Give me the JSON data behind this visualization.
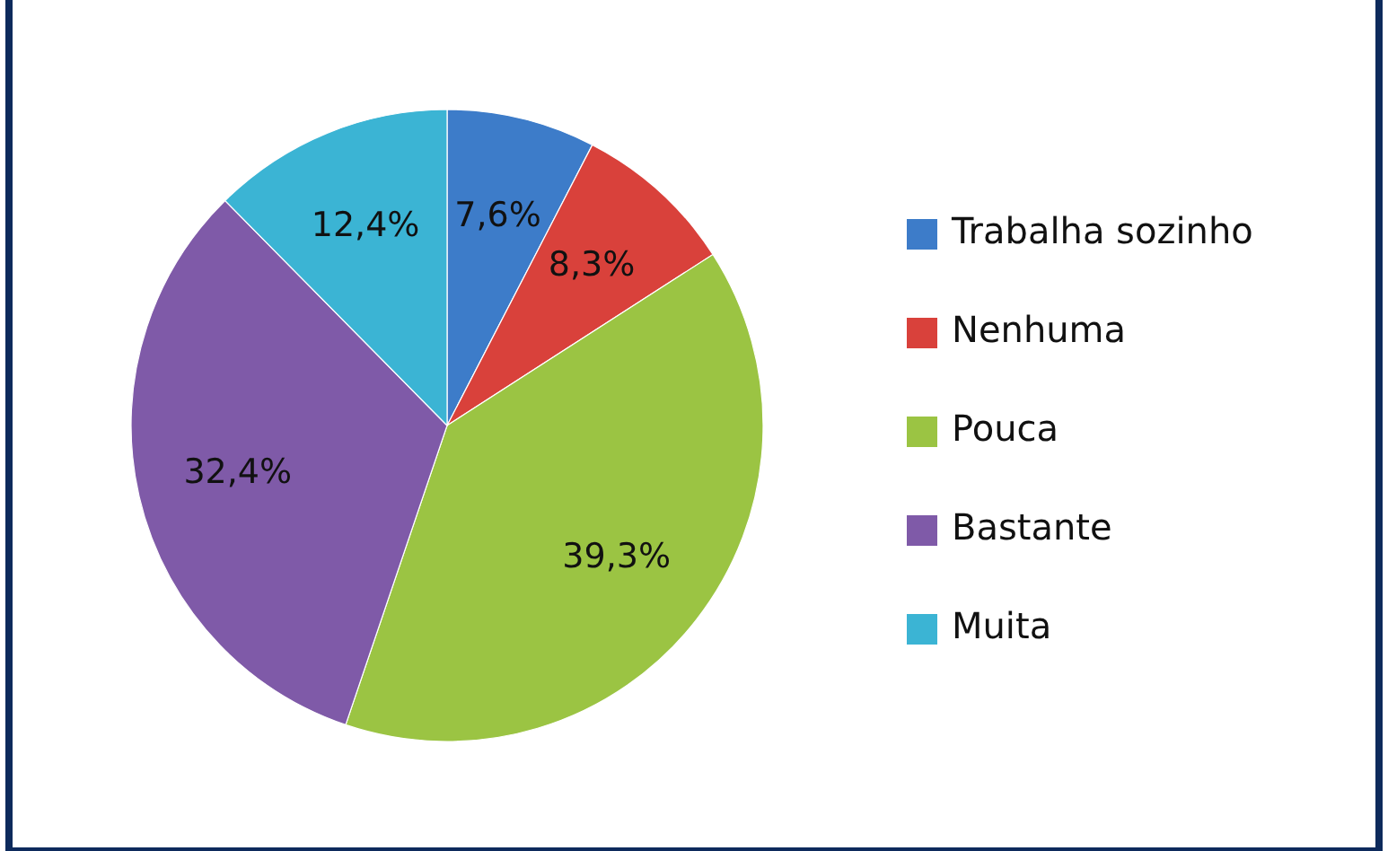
{
  "chart_data": {
    "type": "pie",
    "categories": [
      "Trabalha sozinho",
      "Nenhuma",
      "Pouca",
      "Bastante",
      "Muita"
    ],
    "values": [
      7.6,
      8.3,
      39.3,
      32.4,
      12.4
    ],
    "colors": [
      "#3d7cc9",
      "#d9413b",
      "#9bc443",
      "#7f5aa8",
      "#3bb4d4"
    ],
    "value_labels": [
      "7,6%",
      "8,3%",
      "39,3%",
      "32,4%",
      "12,4%"
    ],
    "legend": "right"
  }
}
